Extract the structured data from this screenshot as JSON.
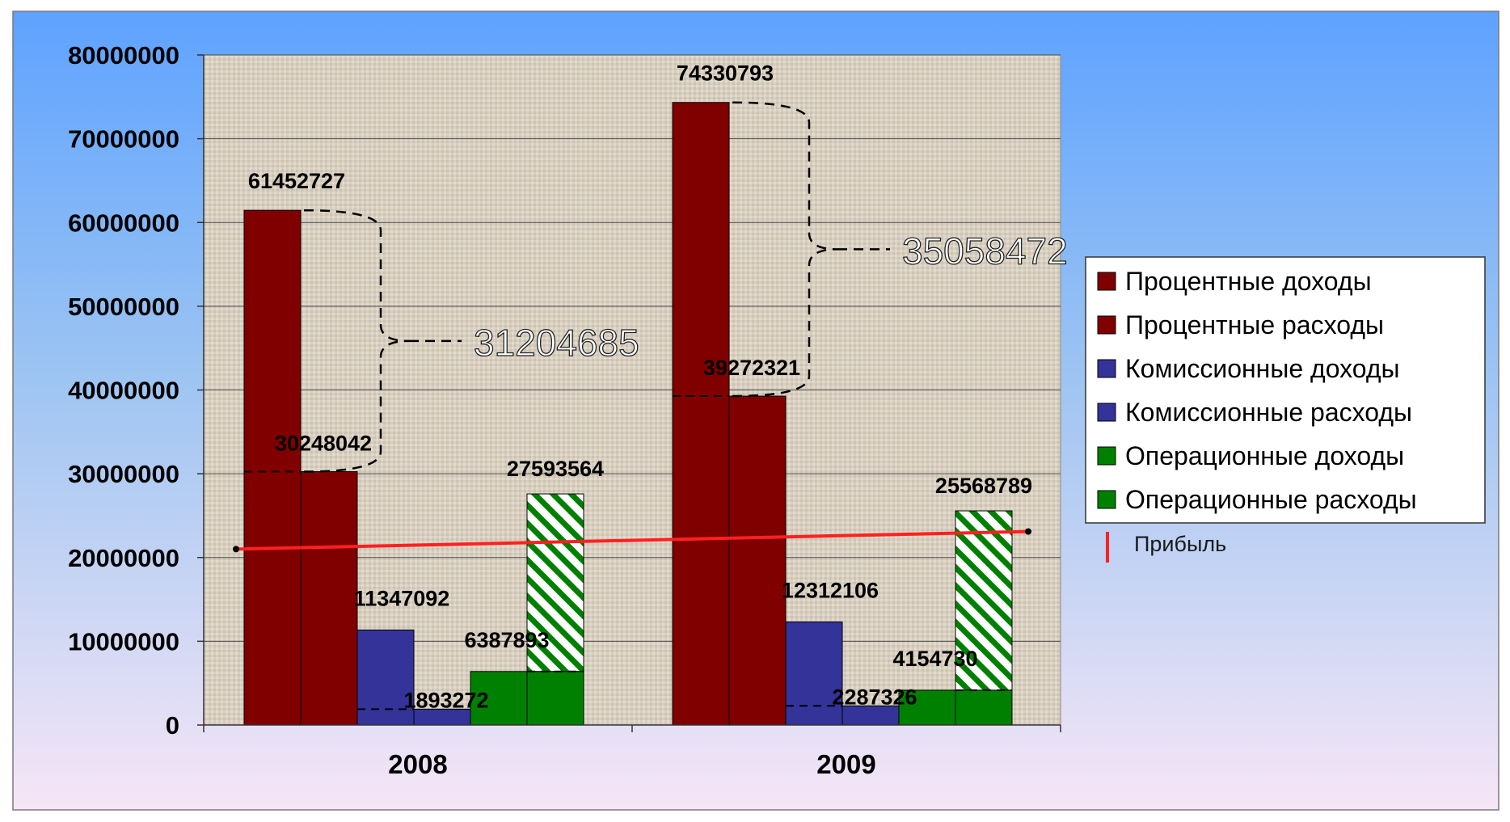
{
  "chart_data": {
    "type": "bar",
    "categories": [
      "2008",
      "2009"
    ],
    "ylim": [
      0,
      80000000
    ],
    "yticks": [
      0,
      10000000,
      20000000,
      30000000,
      40000000,
      50000000,
      60000000,
      70000000,
      80000000
    ],
    "ytick_labels": [
      "0",
      "10000000",
      "20000000",
      "30000000",
      "40000000",
      "50000000",
      "60000000",
      "70000000",
      "80000000"
    ],
    "grid": true,
    "legend_position": "right",
    "series": [
      {
        "name": "Процентные доходы",
        "color": "#800000",
        "values": [
          61452727,
          74330793
        ],
        "labels": [
          "61452727",
          "74330793"
        ]
      },
      {
        "name": "Процентные расходы",
        "color": "#800000",
        "values": [
          30248042,
          39272321
        ],
        "labels": [
          "30248042",
          "39272321"
        ]
      },
      {
        "name": "Комиссионные доходы",
        "color": "#33339a",
        "values": [
          11347092,
          12312106
        ],
        "labels": [
          "11347092",
          "12312106"
        ]
      },
      {
        "name": "Комиссионные расходы",
        "color": "#33339a",
        "values": [
          1893272,
          2287326
        ],
        "labels": [
          "1893272",
          "2287326"
        ]
      },
      {
        "name": "Операционные доходы",
        "color": "#008000",
        "values": [
          6387893,
          4154730
        ],
        "labels": [
          "6387893",
          "4154730"
        ]
      },
      {
        "name": "Операционные расходы",
        "color": "#008000",
        "values": [
          27593564,
          25568789
        ],
        "labels": [
          "27593564",
          "25568789"
        ],
        "hatched_above": [
          6387893,
          4154730
        ]
      }
    ],
    "profit_line": {
      "name": "Прибыль",
      "color": "#ff2020",
      "values": [
        21000000,
        23100000
      ]
    },
    "annotations": [
      {
        "text": "31204685",
        "category": "2008"
      },
      {
        "text": "35058472",
        "category": "2009"
      }
    ]
  }
}
